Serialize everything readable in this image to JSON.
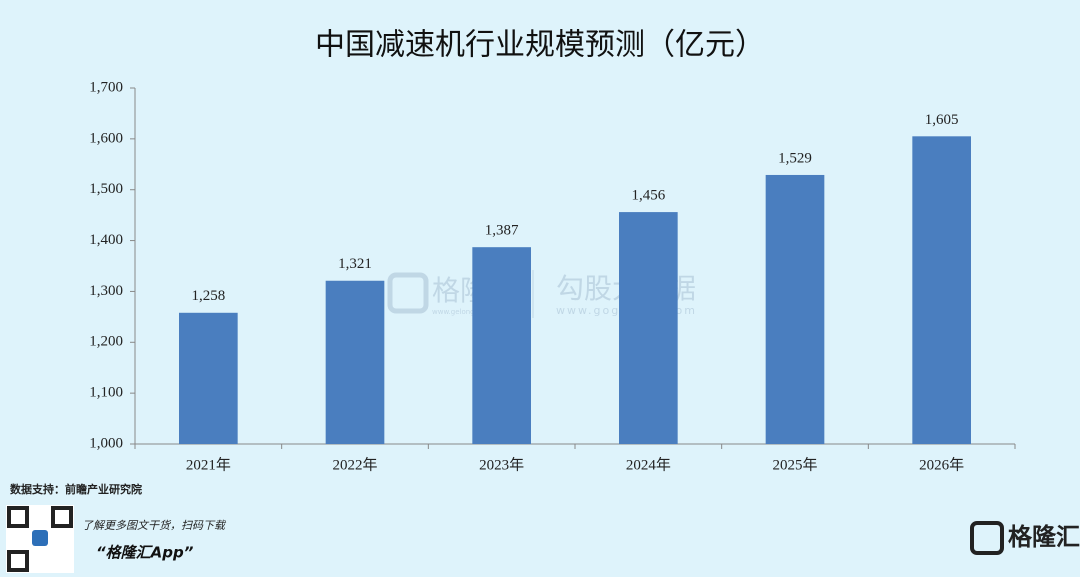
{
  "chart_data": {
    "type": "bar",
    "title": "中国减速机行业规模预测（亿元）",
    "categories": [
      "2021年",
      "2022年",
      "2023年",
      "2024年",
      "2025年",
      "2026年"
    ],
    "values": [
      1258,
      1321,
      1387,
      1456,
      1529,
      1605
    ],
    "value_labels": [
      "1,258",
      "1,321",
      "1,387",
      "1,456",
      "1,529",
      "1,605"
    ],
    "color": "#4a7ebf",
    "ylim": [
      1000,
      1700
    ],
    "yticks": [
      {
        "value": 1000,
        "label": "1,000"
      },
      {
        "value": 1100,
        "label": "1,100"
      },
      {
        "value": 1200,
        "label": "1,200"
      },
      {
        "value": 1300,
        "label": "1,300"
      },
      {
        "value": 1400,
        "label": "1,400"
      },
      {
        "value": 1500,
        "label": "1,500"
      },
      {
        "value": 1600,
        "label": "1,600"
      },
      {
        "value": 1700,
        "label": "1,700"
      }
    ],
    "grid": false
  },
  "source": "数据支持：前瞻产业研究院",
  "watermark": {
    "brand": "格隆汇",
    "brand_url": "www.gelonghui.com",
    "product": "勾股大数据",
    "product_url": "www.gogudata.com"
  },
  "footer": {
    "promo": "了解更多图文干货，扫码下载",
    "app": "“格隆汇App”",
    "logo": "格隆汇"
  }
}
